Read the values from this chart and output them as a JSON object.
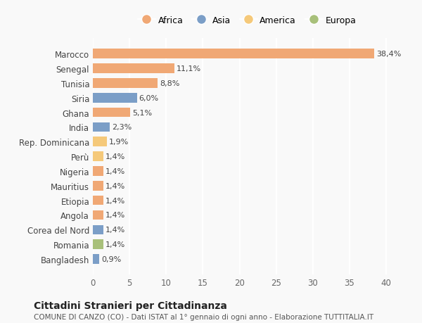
{
  "categories": [
    "Marocco",
    "Senegal",
    "Tunisia",
    "Siria",
    "Ghana",
    "India",
    "Rep. Dominicana",
    "Perù",
    "Nigeria",
    "Mauritius",
    "Etiopia",
    "Angola",
    "Corea del Nord",
    "Romania",
    "Bangladesh"
  ],
  "values": [
    38.4,
    11.1,
    8.8,
    6.0,
    5.1,
    2.3,
    1.9,
    1.4,
    1.4,
    1.4,
    1.4,
    1.4,
    1.4,
    1.4,
    0.9
  ],
  "labels": [
    "38,4%",
    "11,1%",
    "8,8%",
    "6,0%",
    "5,1%",
    "2,3%",
    "1,9%",
    "1,4%",
    "1,4%",
    "1,4%",
    "1,4%",
    "1,4%",
    "1,4%",
    "1,4%",
    "0,9%"
  ],
  "colors": [
    "#F0A875",
    "#F0A875",
    "#F0A875",
    "#7B9EC7",
    "#F0A875",
    "#7B9EC7",
    "#F5C97A",
    "#F5C97A",
    "#F0A875",
    "#F0A875",
    "#F0A875",
    "#F0A875",
    "#7B9EC7",
    "#A8C07A",
    "#7B9EC7"
  ],
  "legend_labels": [
    "Africa",
    "Asia",
    "America",
    "Europa"
  ],
  "legend_colors": [
    "#F0A875",
    "#7B9EC7",
    "#F5C97A",
    "#A8C07A"
  ],
  "xlim": [
    0,
    42
  ],
  "xticks": [
    0,
    5,
    10,
    15,
    20,
    25,
    30,
    35,
    40
  ],
  "title": "Cittadini Stranieri per Cittadinanza",
  "subtitle": "COMUNE DI CANZO (CO) - Dati ISTAT al 1° gennaio di ogni anno - Elaborazione TUTTITALIA.IT",
  "bg_color": "#f9f9f9",
  "grid_color": "#ffffff",
  "bar_height": 0.65
}
